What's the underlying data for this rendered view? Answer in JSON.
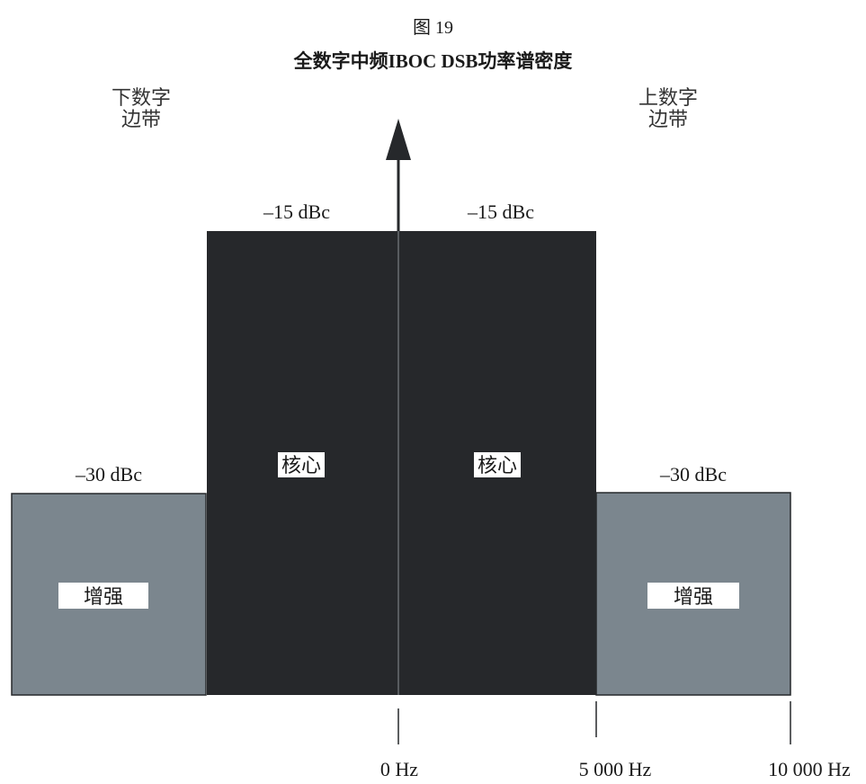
{
  "figure": {
    "number": "图 19",
    "title": "全数字中频IBOC DSB功率谱密度"
  },
  "sidebands": {
    "lower": {
      "line1": "下数字",
      "line2": "边带"
    },
    "upper": {
      "line1": "上数字",
      "line2": "边带"
    }
  },
  "regions": {
    "core_lower": {
      "label": "核心",
      "level": "–15 dBc",
      "color": "#26282b"
    },
    "core_upper": {
      "label": "核心",
      "level": "–15 dBc",
      "color": "#26282b"
    },
    "enh_lower": {
      "label": "增强",
      "level": "–30 dBc",
      "color": "#7b868e"
    },
    "enh_upper": {
      "label": "增强",
      "level": "–30 dBc",
      "color": "#7b868e"
    }
  },
  "axis": {
    "ticks": [
      "0 Hz",
      "5 000 Hz",
      "10 000 Hz"
    ]
  }
}
